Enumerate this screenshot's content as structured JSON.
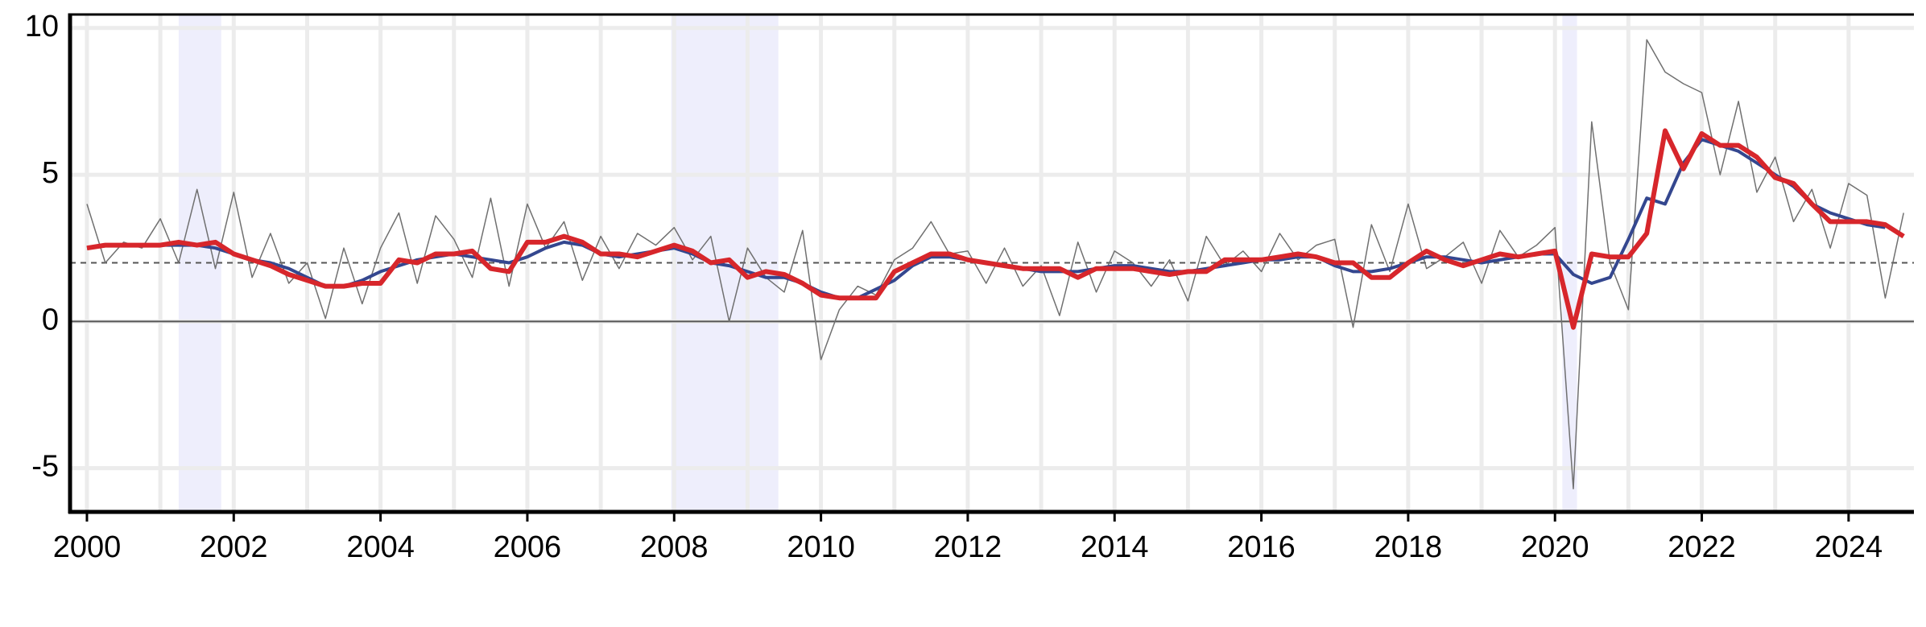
{
  "chart_data": {
    "type": "line",
    "x": [
      2000,
      2000.25,
      2000.5,
      2000.75,
      2001,
      2001.25,
      2001.5,
      2001.75,
      2002,
      2002.25,
      2002.5,
      2002.75,
      2003,
      2003.25,
      2003.5,
      2003.75,
      2004,
      2004.25,
      2004.5,
      2004.75,
      2005,
      2005.25,
      2005.5,
      2005.75,
      2006,
      2006.25,
      2006.5,
      2006.75,
      2007,
      2007.25,
      2007.5,
      2007.75,
      2008,
      2008.25,
      2008.5,
      2008.75,
      2009,
      2009.25,
      2009.5,
      2009.75,
      2010,
      2010.25,
      2010.5,
      2010.75,
      2011,
      2011.25,
      2011.5,
      2011.75,
      2012,
      2012.25,
      2012.5,
      2012.75,
      2013,
      2013.25,
      2013.5,
      2013.75,
      2014,
      2014.25,
      2014.5,
      2014.75,
      2015,
      2015.25,
      2015.5,
      2015.75,
      2016,
      2016.25,
      2016.5,
      2016.75,
      2017,
      2017.25,
      2017.5,
      2017.75,
      2018,
      2018.25,
      2018.5,
      2018.75,
      2019,
      2019.25,
      2019.5,
      2019.75,
      2020,
      2020.25,
      2020.5,
      2020.75,
      2021,
      2021.25,
      2021.5,
      2021.75,
      2022,
      2022.25,
      2022.5,
      2022.75,
      2023,
      2023.25,
      2023.5,
      2023.75,
      2024,
      2024.25,
      2024.5,
      2024.75
    ],
    "series": [
      {
        "color": "#707070",
        "width": 1.5,
        "values": [
          4.0,
          2.0,
          2.7,
          2.5,
          3.5,
          2.0,
          4.5,
          1.8,
          4.4,
          1.5,
          3.0,
          1.3,
          2.0,
          0.1,
          2.5,
          0.6,
          2.5,
          3.7,
          1.3,
          3.6,
          2.8,
          1.5,
          4.2,
          1.2,
          4.0,
          2.5,
          3.4,
          1.4,
          2.9,
          1.8,
          3.0,
          2.6,
          3.2,
          2.1,
          2.9,
          0.0,
          2.5,
          1.5,
          1.0,
          3.1,
          -1.3,
          0.4,
          1.2,
          0.9,
          2.1,
          2.5,
          3.4,
          2.3,
          2.4,
          1.3,
          2.5,
          1.2,
          1.9,
          0.2,
          2.7,
          1.0,
          2.4,
          2.0,
          1.2,
          2.1,
          0.7,
          2.9,
          1.9,
          2.4,
          1.7,
          3.0,
          2.1,
          2.6,
          2.8,
          -0.2,
          3.3,
          1.7,
          4.0,
          1.8,
          2.2,
          2.7,
          1.3,
          3.1,
          2.2,
          2.6,
          3.2,
          -5.7,
          6.8,
          2.0,
          0.4,
          9.6,
          8.5,
          8.1,
          7.8,
          5.0,
          7.5,
          4.4,
          5.6,
          3.4,
          4.5,
          2.5,
          4.7,
          4.3,
          0.8,
          3.7
        ]
      },
      {
        "color": "#34478f",
        "width": 4,
        "values": [
          2.5,
          2.6,
          2.6,
          2.6,
          2.6,
          2.6,
          2.6,
          2.5,
          2.3,
          2.1,
          2.0,
          1.8,
          1.5,
          1.2,
          1.2,
          1.4,
          1.7,
          1.9,
          2.1,
          2.2,
          2.3,
          2.2,
          2.1,
          2.0,
          2.2,
          2.5,
          2.7,
          2.6,
          2.3,
          2.2,
          2.3,
          2.4,
          2.5,
          2.3,
          2.0,
          1.9,
          1.7,
          1.5,
          1.5,
          1.3,
          1.0,
          0.8,
          0.8,
          1.1,
          1.4,
          1.9,
          2.2,
          2.2,
          2.1,
          2.0,
          1.9,
          1.8,
          1.7,
          1.7,
          1.7,
          1.8,
          1.9,
          1.9,
          1.8,
          1.7,
          1.7,
          1.8,
          1.9,
          2.0,
          2.1,
          2.1,
          2.2,
          2.2,
          1.9,
          1.7,
          1.7,
          1.8,
          2.0,
          2.2,
          2.2,
          2.1,
          2.0,
          2.1,
          2.2,
          2.3,
          2.3,
          1.6,
          1.3,
          1.5,
          2.8,
          4.2,
          4.0,
          5.4,
          6.2,
          6.0,
          5.8,
          5.4,
          5.0,
          4.6,
          4.0,
          3.7,
          3.5,
          3.3,
          3.2,
          null
        ]
      },
      {
        "color": "#d7262b",
        "width": 6,
        "values": [
          2.5,
          2.6,
          2.6,
          2.6,
          2.6,
          2.7,
          2.6,
          2.7,
          2.3,
          2.1,
          1.9,
          1.6,
          1.4,
          1.2,
          1.2,
          1.3,
          1.3,
          2.1,
          2.0,
          2.3,
          2.3,
          2.4,
          1.8,
          1.7,
          2.7,
          2.7,
          2.9,
          2.7,
          2.3,
          2.3,
          2.2,
          2.4,
          2.6,
          2.4,
          2.0,
          2.1,
          1.5,
          1.7,
          1.6,
          1.3,
          0.9,
          0.8,
          0.8,
          0.8,
          1.7,
          2.0,
          2.3,
          2.3,
          2.1,
          2.0,
          1.9,
          1.8,
          1.8,
          1.8,
          1.5,
          1.8,
          1.8,
          1.8,
          1.7,
          1.6,
          1.7,
          1.7,
          2.1,
          2.1,
          2.1,
          2.2,
          2.3,
          2.2,
          2.0,
          2.0,
          1.5,
          1.5,
          2.0,
          2.4,
          2.1,
          1.9,
          2.1,
          2.3,
          2.2,
          2.3,
          2.4,
          -0.2,
          2.3,
          2.2,
          2.2,
          3.0,
          6.5,
          5.2,
          6.4,
          6.0,
          6.0,
          5.6,
          4.9,
          4.7,
          4.0,
          3.4,
          3.4,
          3.4,
          3.3,
          2.9
        ]
      }
    ],
    "recessions": [
      [
        2001.25,
        2001.83
      ],
      [
        2007.96,
        2009.42
      ],
      [
        2020.1,
        2020.3
      ]
    ],
    "recession_color": "#eeeefc",
    "reference_lines": [
      {
        "value": 2,
        "style": "dashed"
      },
      {
        "value": 0,
        "style": "solid"
      }
    ],
    "xlim": [
      1999.77,
      2024.89
    ],
    "ylim": [
      -6.49,
      10.46
    ],
    "xticks": [
      2000,
      2002,
      2004,
      2006,
      2008,
      2010,
      2012,
      2014,
      2016,
      2018,
      2020,
      2022,
      2024
    ],
    "xminorticks": [
      2001,
      2003,
      2005,
      2007,
      2009,
      2011,
      2013,
      2015,
      2017,
      2019,
      2021,
      2023
    ],
    "yticks": [
      -5,
      0,
      5,
      10
    ],
    "grid": true
  }
}
